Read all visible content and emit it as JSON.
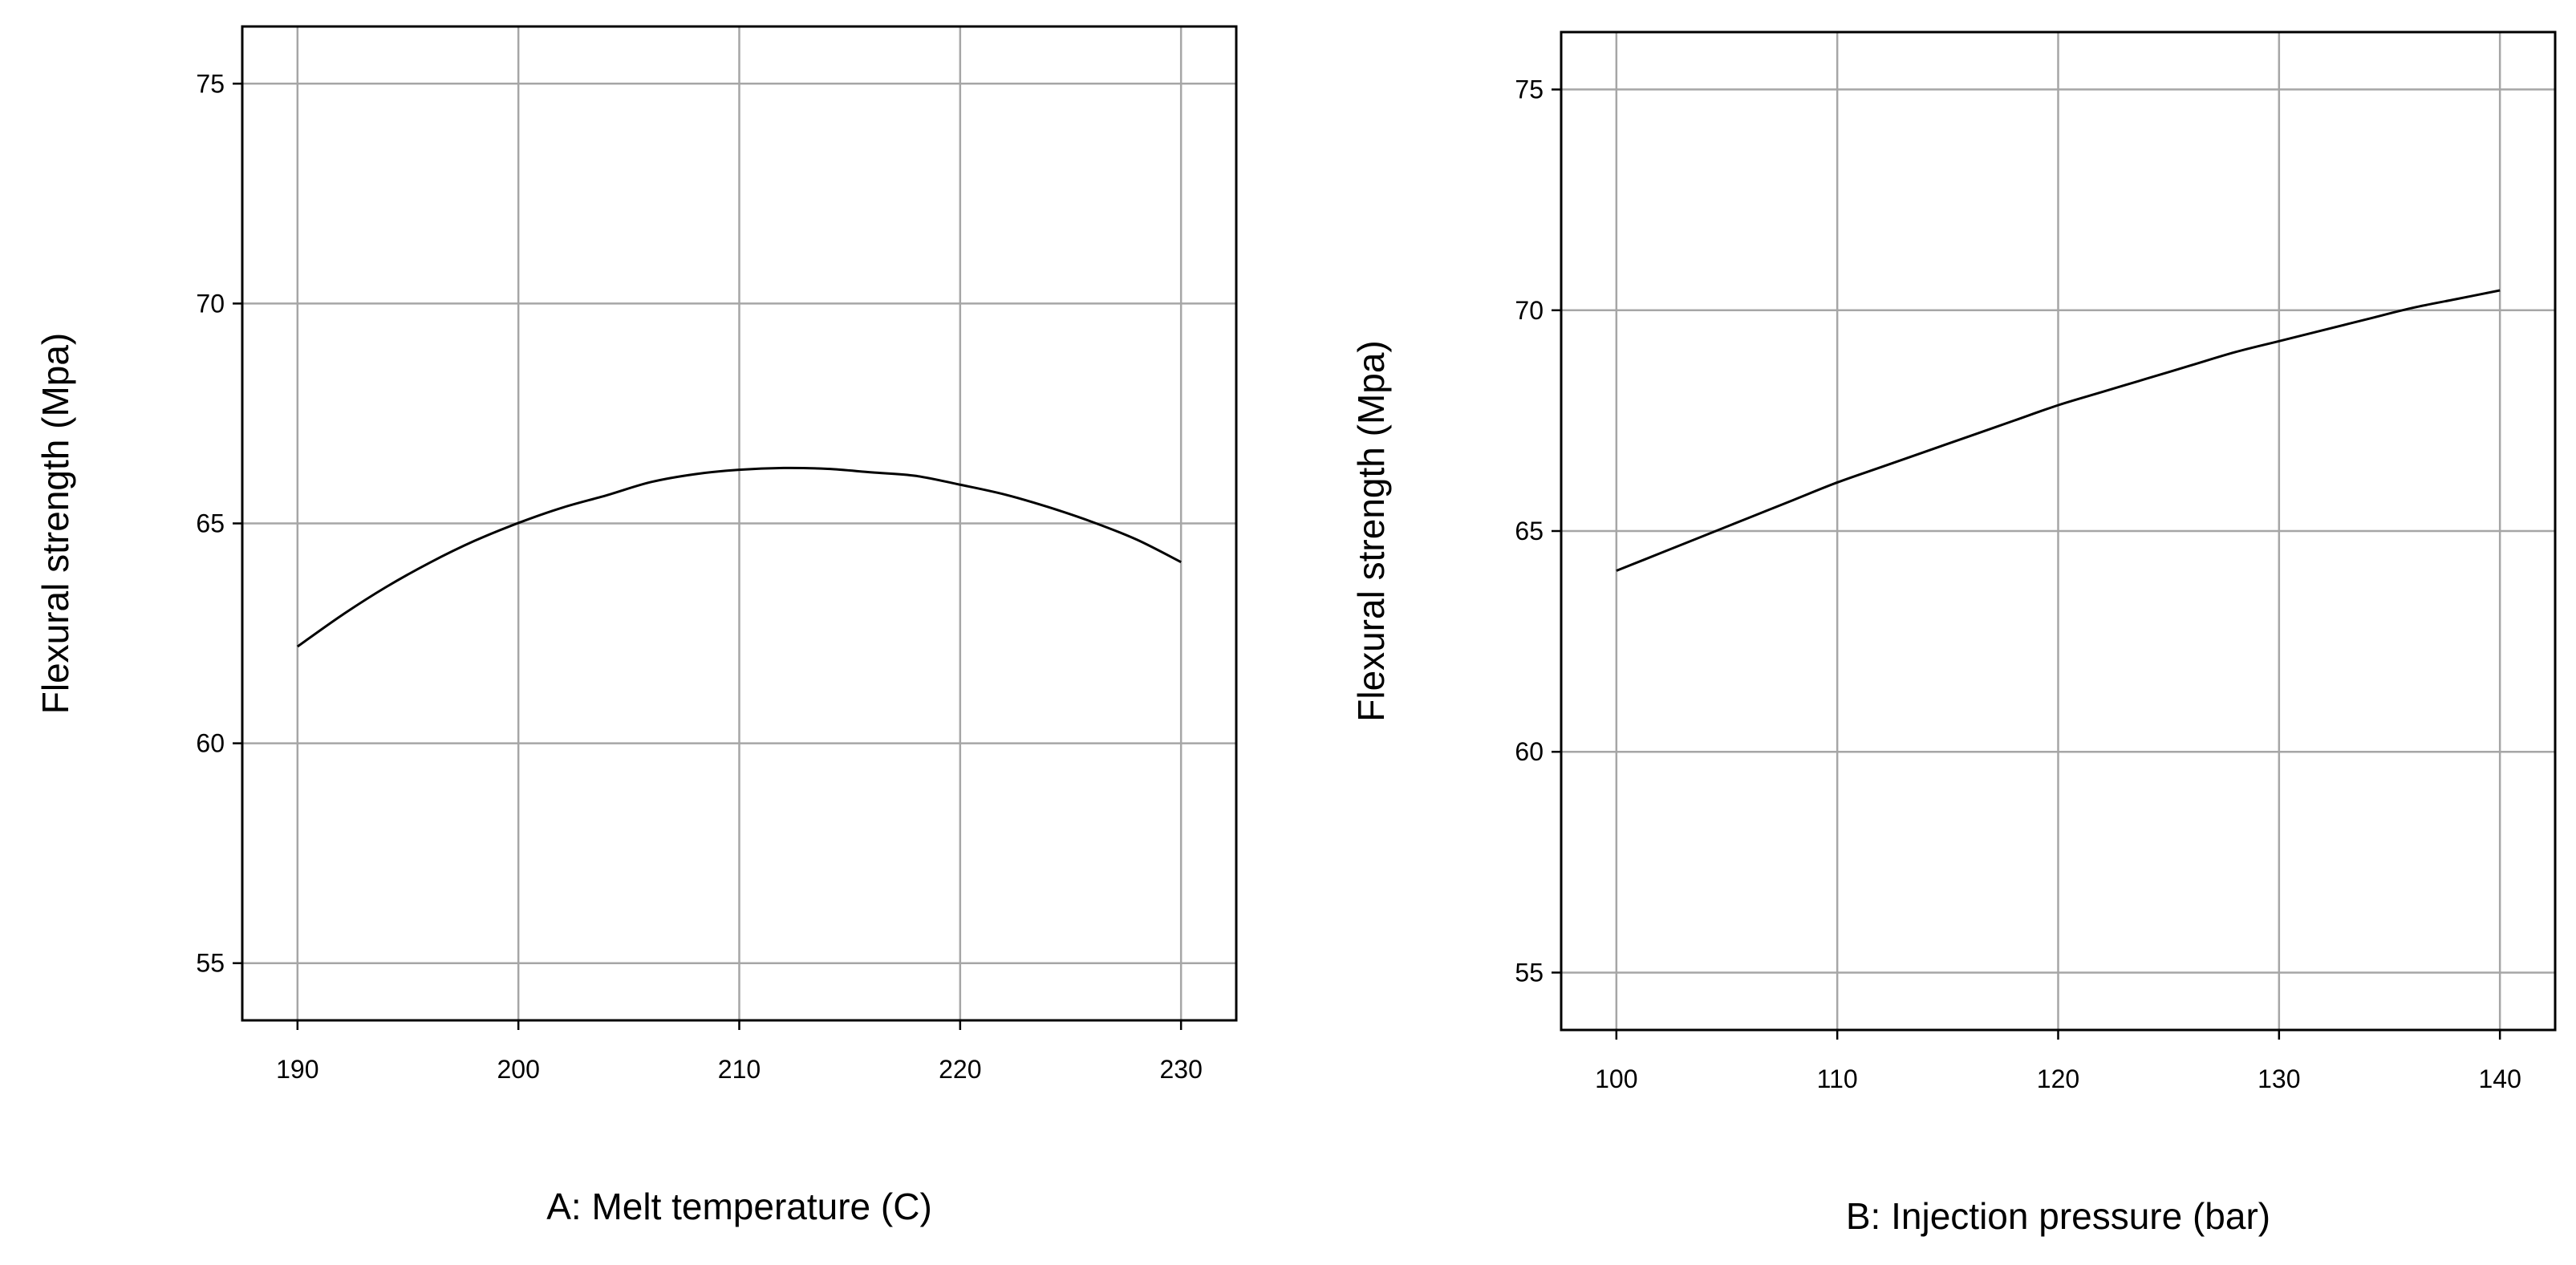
{
  "chart_data": [
    {
      "type": "line",
      "title": "",
      "xlabel": "A: Melt temperature (C)",
      "ylabel": "Flexural strength (Mpa)",
      "xlim": [
        187.5,
        232.5
      ],
      "ylim": [
        53.7,
        76.3
      ],
      "x_ticks": [
        190,
        200,
        210,
        220,
        230
      ],
      "y_ticks": [
        55,
        60,
        65,
        70,
        75
      ],
      "grid": true,
      "series": [
        {
          "x": [
            190,
            192,
            194,
            196,
            198,
            200,
            202,
            204,
            206,
            208,
            210,
            212,
            214,
            216,
            218,
            220,
            222,
            224,
            226,
            228,
            230
          ],
          "values": [
            62.2,
            62.91,
            63.55,
            64.11,
            64.6,
            65.01,
            65.36,
            65.64,
            65.94,
            66.12,
            66.22,
            66.26,
            66.24,
            66.16,
            66.08,
            65.88,
            65.66,
            65.37,
            65.03,
            64.63,
            64.12
          ]
        }
      ]
    },
    {
      "type": "line",
      "title": "",
      "xlabel": "B: Injection pressure (bar)",
      "ylabel": "Flexural strength (Mpa)",
      "xlim": [
        97.5,
        142.5
      ],
      "ylim": [
        53.7,
        76.3
      ],
      "x_ticks": [
        100,
        110,
        120,
        130,
        140
      ],
      "y_ticks": [
        55,
        60,
        65,
        70,
        75
      ],
      "grid": true,
      "series": [
        {
          "x": [
            100,
            102,
            104,
            106,
            108,
            110,
            112,
            114,
            116,
            118,
            120,
            122,
            124,
            126,
            128,
            130,
            132,
            134,
            136,
            138,
            140
          ],
          "values": [
            64.1,
            64.5,
            64.9,
            65.3,
            65.7,
            66.1,
            66.45,
            66.8,
            67.15,
            67.5,
            67.85,
            68.15,
            68.45,
            68.75,
            69.05,
            69.3,
            69.55,
            69.8,
            70.05,
            70.25,
            70.45
          ]
        }
      ]
    }
  ]
}
